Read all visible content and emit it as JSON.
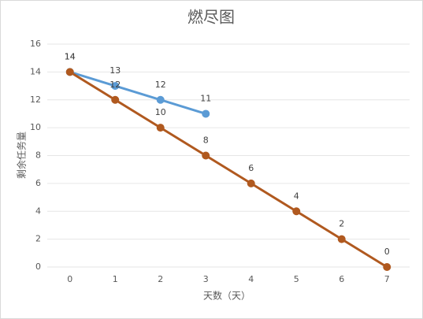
{
  "chart_data": {
    "type": "line",
    "title": "燃尽图",
    "x_label": "天数（天）",
    "y_label": "剩余任务量",
    "categories": [
      "0",
      "1",
      "2",
      "3",
      "4",
      "5",
      "6",
      "7"
    ],
    "series": [
      {
        "color": "#5b9bd5",
        "values": [
          14,
          13,
          12,
          11,
          null,
          null,
          null,
          null
        ]
      },
      {
        "color": "#b0591f",
        "values": [
          14,
          12,
          10,
          8,
          6,
          4,
          2,
          0
        ]
      }
    ],
    "ylim": [
      0,
      16
    ],
    "yticks": [
      0,
      2,
      4,
      6,
      8,
      10,
      12,
      14,
      16
    ],
    "grid": true
  }
}
